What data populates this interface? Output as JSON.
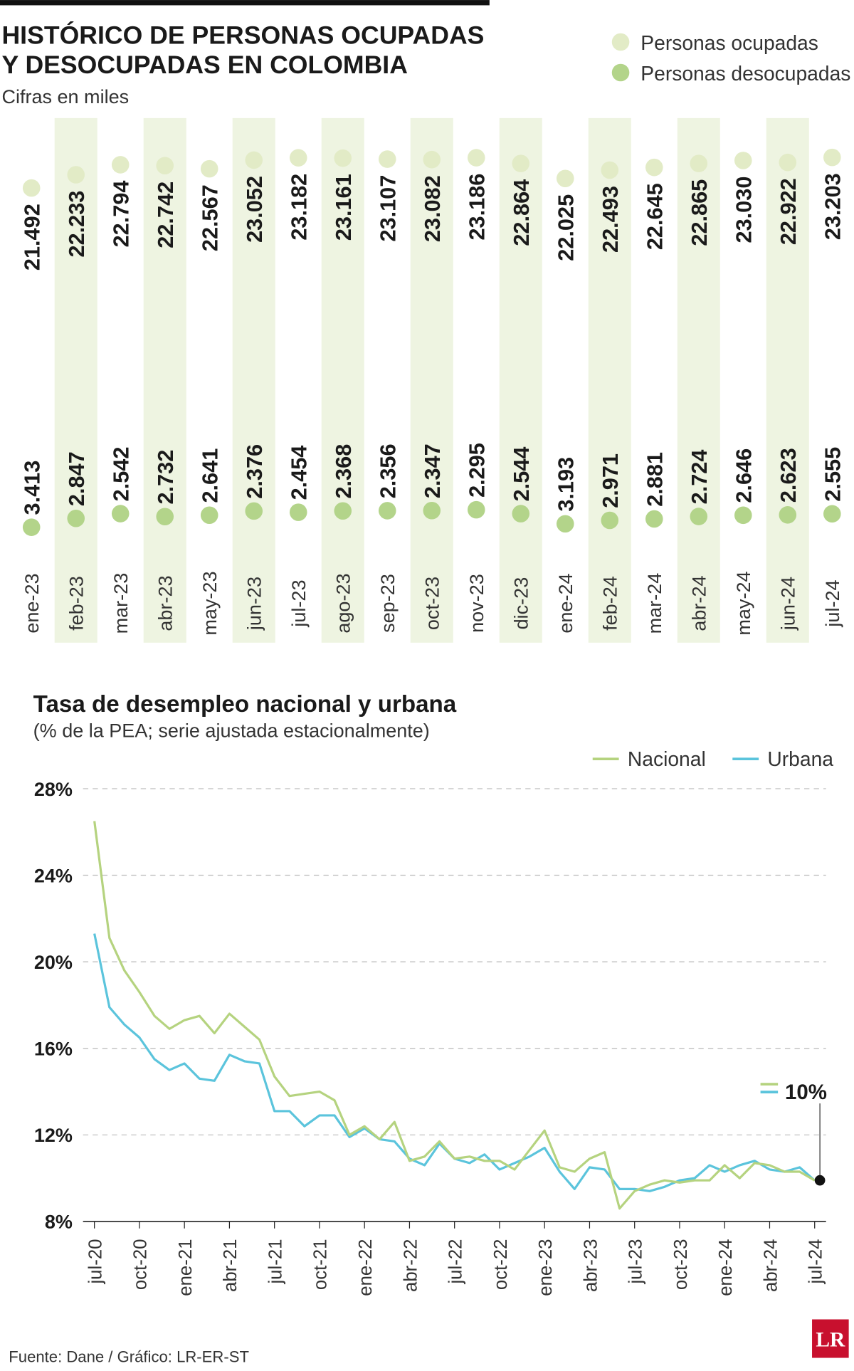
{
  "chart_data": [
    {
      "type": "dot",
      "title": [
        "HISTÓRICO DE PERSONAS OCUPADAS",
        "Y DESOCUPADAS EN COLOMBIA"
      ],
      "subtitle": "Cifras en miles",
      "categories": [
        "ene-23",
        "feb-23",
        "mar-23",
        "abr-23",
        "may-23",
        "jun-23",
        "jul-23",
        "ago-23",
        "sep-23",
        "oct-23",
        "nov-23",
        "dic-23",
        "ene-24",
        "feb-24",
        "mar-24",
        "abr-24",
        "may-24",
        "jun-24",
        "jul-24"
      ],
      "series": [
        {
          "name": "Personas ocupadas",
          "color": "#e2ebc6",
          "values": [
            21492,
            22233,
            22794,
            22742,
            22567,
            23052,
            23182,
            23161,
            23107,
            23082,
            23186,
            22864,
            22025,
            22493,
            22645,
            22865,
            23030,
            22922,
            23203
          ],
          "value_labels": [
            "21.492",
            "22.233",
            "22.794",
            "22.742",
            "22.567",
            "23.052",
            "23.182",
            "23.161",
            "23.107",
            "23.082",
            "23.186",
            "22.864",
            "22.025",
            "22.493",
            "22.645",
            "22.865",
            "23.030",
            "22.922",
            "23.203"
          ]
        },
        {
          "name": "Personas desocupadas",
          "color": "#b3d48a",
          "values": [
            3413,
            2847,
            2542,
            2732,
            2641,
            2376,
            2454,
            2368,
            2356,
            2347,
            2295,
            2544,
            3193,
            2971,
            2881,
            2724,
            2646,
            2623,
            2555
          ],
          "value_labels": [
            "3.413",
            "2.847",
            "2.542",
            "2.732",
            "2.641",
            "2.376",
            "2.454",
            "2.368",
            "2.356",
            "2.347",
            "2.295",
            "2.544",
            "3.193",
            "2.971",
            "2.881",
            "2.724",
            "2.646",
            "2.623",
            "2.555"
          ]
        }
      ]
    },
    {
      "type": "line",
      "title": "Tasa de desempleo nacional y urbana",
      "subtitle": "(% de la PEA; serie ajustada estacionalmente)",
      "categories": [
        "jul-20",
        null,
        null,
        "oct-20",
        null,
        null,
        "ene-21",
        null,
        null,
        "abr-21",
        null,
        null,
        "jul-21",
        null,
        null,
        "oct-21",
        null,
        null,
        "ene-22",
        null,
        null,
        "abr-22",
        null,
        null,
        "jul-22",
        null,
        null,
        "oct-22",
        null,
        null,
        "ene-23",
        null,
        null,
        "abr-23",
        null,
        null,
        "jul-23",
        null,
        null,
        "oct-23",
        null,
        null,
        "ene-24",
        null,
        null,
        "abr-24",
        null,
        null,
        "jul-24"
      ],
      "series": [
        {
          "name": "Nacional",
          "color": "#b5d37f",
          "values": [
            26.5,
            21.1,
            19.6,
            18.6,
            17.5,
            16.9,
            17.3,
            17.5,
            16.7,
            17.6,
            17.0,
            16.4,
            14.7,
            13.8,
            13.9,
            14.0,
            13.6,
            12.0,
            12.4,
            11.8,
            12.6,
            10.8,
            11.0,
            11.7,
            10.9,
            11.0,
            10.8,
            10.8,
            10.4,
            11.3,
            12.2,
            10.5,
            10.3,
            10.9,
            11.2,
            8.6,
            9.4,
            9.7,
            9.9,
            9.8,
            9.9,
            9.9,
            10.6,
            10.0,
            10.7,
            10.6,
            10.3,
            10.3,
            9.9
          ]
        },
        {
          "name": "Urbana",
          "color": "#5bc4dc",
          "values": [
            21.3,
            17.9,
            17.1,
            16.5,
            15.5,
            15.0,
            15.3,
            14.6,
            14.5,
            15.7,
            15.4,
            15.3,
            13.1,
            13.1,
            12.4,
            12.9,
            12.9,
            11.9,
            12.3,
            11.8,
            11.7,
            10.9,
            10.6,
            11.6,
            10.9,
            10.7,
            11.1,
            10.4,
            10.7,
            11.0,
            11.4,
            10.3,
            9.5,
            10.5,
            10.4,
            9.5,
            9.5,
            9.4,
            9.6,
            9.9,
            10.0,
            10.6,
            10.3,
            10.6,
            10.8,
            10.4,
            10.3,
            10.5,
            9.9
          ]
        }
      ],
      "ylim": [
        8,
        28
      ],
      "yticks": [
        {
          "value": 8,
          "label": "8%"
        },
        {
          "value": 12,
          "label": "12%"
        },
        {
          "value": 16,
          "label": "16%"
        },
        {
          "value": 20,
          "label": "20%"
        },
        {
          "value": 24,
          "label": "24%"
        },
        {
          "value": 28,
          "label": "28%"
        }
      ],
      "grid": true,
      "annotation": "10%"
    }
  ],
  "source": "Fuente: Dane / Gráfico: LR-ER-ST",
  "logo": "LR"
}
